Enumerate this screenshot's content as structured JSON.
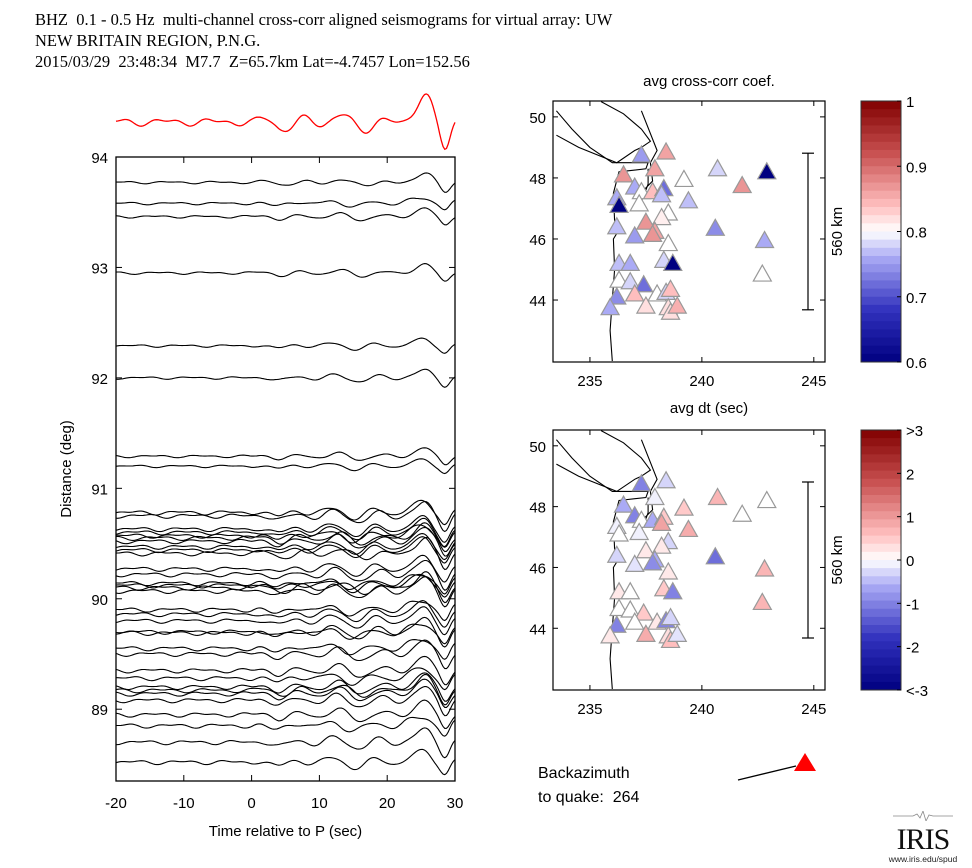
{
  "header": {
    "line1": "BHZ  0.1 - 0.5 Hz  multi-channel cross-corr aligned seismograms for virtual array: UW",
    "line2": "NEW BRITAIN REGION, P.N.G.",
    "line3": "2015/03/29  23:48:34  M7.7  Z=65.7km Lat=-4.7457 Lon=152.56"
  },
  "backazimuth": {
    "label1": "Backazimuth",
    "label2": "to quake:  264",
    "value": 264,
    "marker_color": "#ff0000"
  },
  "logo": {
    "name": "IRIS",
    "url_text": "www.iris.edu/spud"
  },
  "chart_data": [
    {
      "type": "line",
      "title": "Aligned seismograms (record section)",
      "xlabel": "Time relative to P (sec)",
      "ylabel": "Distance (deg)",
      "xlim": [
        -20,
        30
      ],
      "ylim": [
        88.35,
        94.0
      ],
      "xticks": [
        "-20",
        "-10",
        "0",
        "10",
        "20",
        "30"
      ],
      "yticks": [
        "89",
        "90",
        "91",
        "92",
        "93",
        "94"
      ],
      "stack_trace": {
        "name": "stack",
        "color": "#ff0000"
      },
      "trace_color": "#000000",
      "trace_distances": [
        93.77,
        93.58,
        93.46,
        92.95,
        92.29,
        92.0,
        91.29,
        91.2,
        90.78,
        90.75,
        90.63,
        90.6,
        90.57,
        90.55,
        90.52,
        90.47,
        90.44,
        90.41,
        90.27,
        90.22,
        90.14,
        90.12,
        90.1,
        90.07,
        89.9,
        89.86,
        89.8,
        89.7,
        89.69,
        89.55,
        89.5,
        89.35,
        89.28,
        89.2,
        89.17,
        89.14,
        89.08,
        88.95,
        88.85,
        88.7,
        88.52
      ],
      "grid": false
    },
    {
      "type": "scatter",
      "title": "avg cross-corr coef.",
      "xlabel": "",
      "ylabel": "",
      "xlim": [
        233.35,
        245.5
      ],
      "ylim": [
        41.97,
        50.52
      ],
      "xticks": [
        "235",
        "240",
        "245"
      ],
      "yticks": [
        "44",
        "46",
        "48",
        "50"
      ],
      "scale_bar": "560 km",
      "colorbar": {
        "min": 0.6,
        "max": 1.0,
        "center": 0.8,
        "ticks": [
          "0.6",
          "0.7",
          "0.8",
          "0.9",
          "1"
        ]
      },
      "points": [
        {
          "lon": 237.3,
          "lat": 48.75,
          "v": 0.75
        },
        {
          "lon": 238.4,
          "lat": 48.85,
          "v": 0.86
        },
        {
          "lon": 236.5,
          "lat": 48.1,
          "v": 0.87
        },
        {
          "lon": 237.9,
          "lat": 48.3,
          "v": 0.86
        },
        {
          "lon": 239.2,
          "lat": 47.95,
          "v": 0.8
        },
        {
          "lon": 237.0,
          "lat": 47.7,
          "v": 0.76
        },
        {
          "lon": 237.3,
          "lat": 47.55,
          "v": 0.8
        },
        {
          "lon": 237.8,
          "lat": 47.55,
          "v": 0.84
        },
        {
          "lon": 238.3,
          "lat": 47.65,
          "v": 0.72
        },
        {
          "lon": 238.2,
          "lat": 47.45,
          "v": 0.77
        },
        {
          "lon": 239.4,
          "lat": 47.25,
          "v": 0.77
        },
        {
          "lon": 236.2,
          "lat": 47.35,
          "v": 0.76
        },
        {
          "lon": 236.3,
          "lat": 47.1,
          "v": 0.6
        },
        {
          "lon": 237.2,
          "lat": 47.15,
          "v": 0.8
        },
        {
          "lon": 238.5,
          "lat": 46.85,
          "v": 0.8
        },
        {
          "lon": 238.2,
          "lat": 46.7,
          "v": 0.81
        },
        {
          "lon": 237.5,
          "lat": 46.55,
          "v": 0.87
        },
        {
          "lon": 237.9,
          "lat": 46.25,
          "v": 0.86
        },
        {
          "lon": 237.8,
          "lat": 46.15,
          "v": 0.87
        },
        {
          "lon": 236.2,
          "lat": 46.4,
          "v": 0.77
        },
        {
          "lon": 237.0,
          "lat": 46.1,
          "v": 0.75
        },
        {
          "lon": 238.5,
          "lat": 45.85,
          "v": 0.8
        },
        {
          "lon": 240.6,
          "lat": 46.35,
          "v": 0.74
        },
        {
          "lon": 240.7,
          "lat": 48.3,
          "v": 0.78
        },
        {
          "lon": 241.8,
          "lat": 47.75,
          "v": 0.87
        },
        {
          "lon": 242.9,
          "lat": 48.2,
          "v": 0.6
        },
        {
          "lon": 242.8,
          "lat": 45.95,
          "v": 0.76
        },
        {
          "lon": 242.7,
          "lat": 44.85,
          "v": 0.8
        },
        {
          "lon": 236.3,
          "lat": 45.2,
          "v": 0.77
        },
        {
          "lon": 236.8,
          "lat": 45.2,
          "v": 0.76
        },
        {
          "lon": 238.3,
          "lat": 45.3,
          "v": 0.78
        },
        {
          "lon": 238.7,
          "lat": 45.2,
          "v": 0.6
        },
        {
          "lon": 236.3,
          "lat": 44.65,
          "v": 0.8
        },
        {
          "lon": 236.8,
          "lat": 44.6,
          "v": 0.78
        },
        {
          "lon": 237.4,
          "lat": 44.5,
          "v": 0.72
        },
        {
          "lon": 237.0,
          "lat": 44.2,
          "v": 0.84
        },
        {
          "lon": 236.2,
          "lat": 44.1,
          "v": 0.74
        },
        {
          "lon": 238.0,
          "lat": 44.2,
          "v": 0.8
        },
        {
          "lon": 238.4,
          "lat": 44.25,
          "v": 0.78
        },
        {
          "lon": 238.6,
          "lat": 44.35,
          "v": 0.84
        },
        {
          "lon": 235.9,
          "lat": 43.75,
          "v": 0.76
        },
        {
          "lon": 237.5,
          "lat": 43.8,
          "v": 0.82
        },
        {
          "lon": 238.5,
          "lat": 43.75,
          "v": 0.82
        },
        {
          "lon": 238.6,
          "lat": 43.6,
          "v": 0.82
        },
        {
          "lon": 238.9,
          "lat": 43.8,
          "v": 0.85
        }
      ]
    },
    {
      "type": "scatter",
      "title": "avg dt (sec)",
      "xlabel": "",
      "ylabel": "",
      "xlim": [
        233.35,
        245.5
      ],
      "ylim": [
        41.97,
        50.52
      ],
      "xticks": [
        "235",
        "240",
        "245"
      ],
      "yticks": [
        "44",
        "46",
        "48",
        "50"
      ],
      "scale_bar": "560 km",
      "colorbar": {
        "min": -3,
        "max": 3,
        "center": 0,
        "ticks": [
          "<-3",
          "-2",
          "-1",
          "0",
          "1",
          "2",
          ">3"
        ]
      },
      "points": [
        {
          "lon": 237.3,
          "lat": 48.75,
          "v": -1.0
        },
        {
          "lon": 238.4,
          "lat": 48.85,
          "v": -0.3
        },
        {
          "lon": 236.5,
          "lat": 48.05,
          "v": -0.6
        },
        {
          "lon": 237.9,
          "lat": 48.3,
          "v": -0.1
        },
        {
          "lon": 239.2,
          "lat": 47.95,
          "v": 0.5
        },
        {
          "lon": 237.0,
          "lat": 47.7,
          "v": -1.0
        },
        {
          "lon": 237.3,
          "lat": 47.55,
          "v": 0.0
        },
        {
          "lon": 237.8,
          "lat": 47.55,
          "v": -0.6
        },
        {
          "lon": 238.3,
          "lat": 47.65,
          "v": 0.5
        },
        {
          "lon": 238.2,
          "lat": 47.45,
          "v": 0.9
        },
        {
          "lon": 239.4,
          "lat": 47.25,
          "v": 0.8
        },
        {
          "lon": 236.2,
          "lat": 47.35,
          "v": -0.1
        },
        {
          "lon": 236.3,
          "lat": 47.1,
          "v": 0.0
        },
        {
          "lon": 237.2,
          "lat": 47.15,
          "v": -0.1
        },
        {
          "lon": 238.5,
          "lat": 46.85,
          "v": -0.3
        },
        {
          "lon": 238.2,
          "lat": 46.7,
          "v": 0.2
        },
        {
          "lon": 237.5,
          "lat": 46.55,
          "v": 0.2
        },
        {
          "lon": 237.9,
          "lat": 46.25,
          "v": -0.6
        },
        {
          "lon": 237.8,
          "lat": 46.15,
          "v": -0.9
        },
        {
          "lon": 236.2,
          "lat": 46.4,
          "v": -0.3
        },
        {
          "lon": 237.0,
          "lat": 46.1,
          "v": -0.2
        },
        {
          "lon": 238.5,
          "lat": 45.85,
          "v": 0.2
        },
        {
          "lon": 240.6,
          "lat": 46.35,
          "v": -1.2
        },
        {
          "lon": 240.7,
          "lat": 48.3,
          "v": 0.7
        },
        {
          "lon": 241.8,
          "lat": 47.75,
          "v": 0.0
        },
        {
          "lon": 242.9,
          "lat": 48.2,
          "v": 0.0
        },
        {
          "lon": 242.8,
          "lat": 45.95,
          "v": 0.7
        },
        {
          "lon": 242.7,
          "lat": 44.85,
          "v": 0.7
        },
        {
          "lon": 236.3,
          "lat": 45.2,
          "v": 0.2
        },
        {
          "lon": 236.8,
          "lat": 45.2,
          "v": 0.0
        },
        {
          "lon": 238.3,
          "lat": 45.3,
          "v": 0.5
        },
        {
          "lon": 238.7,
          "lat": 45.2,
          "v": -1.0
        },
        {
          "lon": 236.3,
          "lat": 44.65,
          "v": 0.0
        },
        {
          "lon": 236.8,
          "lat": 44.6,
          "v": 0.0
        },
        {
          "lon": 237.4,
          "lat": 44.5,
          "v": 0.5
        },
        {
          "lon": 237.0,
          "lat": 44.2,
          "v": 0.0
        },
        {
          "lon": 236.2,
          "lat": 44.1,
          "v": -1.0
        },
        {
          "lon": 238.0,
          "lat": 44.2,
          "v": 0.2
        },
        {
          "lon": 238.4,
          "lat": 44.25,
          "v": -1.0
        },
        {
          "lon": 238.6,
          "lat": 44.35,
          "v": -0.3
        },
        {
          "lon": 235.9,
          "lat": 43.75,
          "v": 0.2
        },
        {
          "lon": 237.5,
          "lat": 43.8,
          "v": 0.8
        },
        {
          "lon": 238.5,
          "lat": 43.75,
          "v": 0.3
        },
        {
          "lon": 238.6,
          "lat": 43.6,
          "v": 0.6
        },
        {
          "lon": 238.9,
          "lat": 43.8,
          "v": -0.2
        }
      ]
    }
  ]
}
